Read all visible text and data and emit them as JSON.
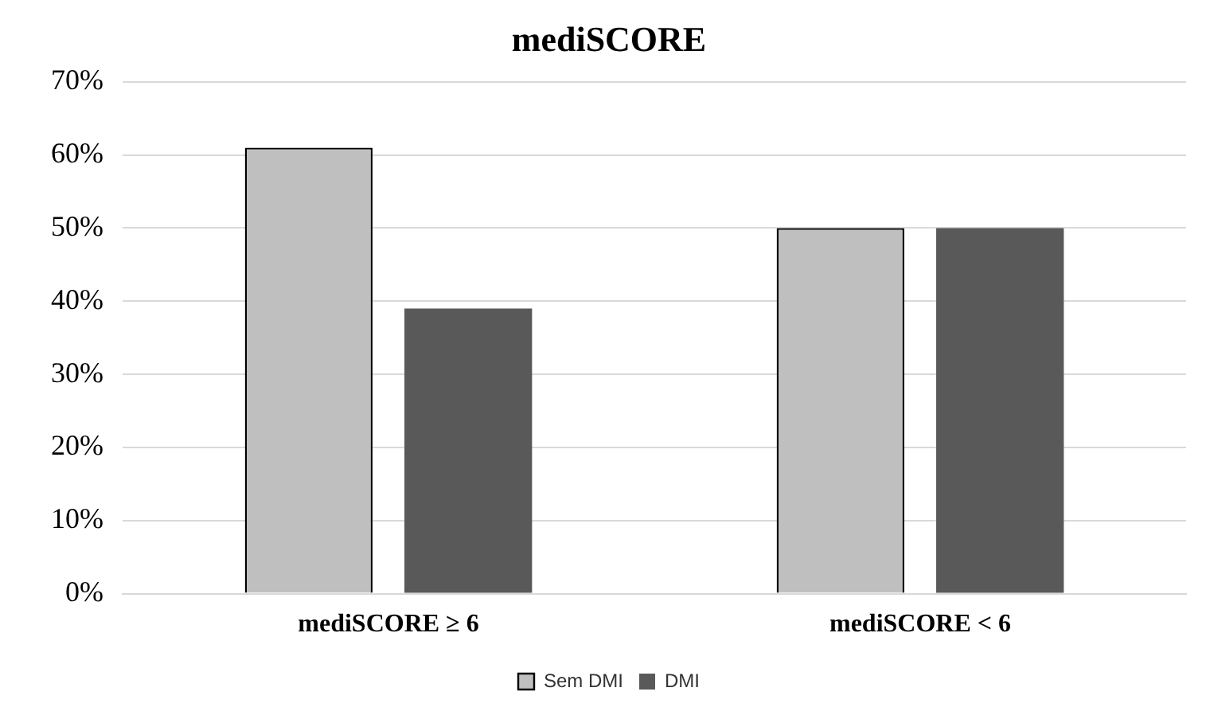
{
  "chart_data": {
    "type": "bar",
    "title": "mediSCORE",
    "categories": [
      "mediSCORE ≥ 6",
      "mediSCORE < 6"
    ],
    "series": [
      {
        "name": "Sem DMI",
        "color": "#bfbfbf",
        "values": [
          61,
          50
        ]
      },
      {
        "name": "DMI",
        "color": "#595959",
        "values": [
          39,
          50
        ]
      }
    ],
    "ylim": [
      0,
      70
    ],
    "yticks": [
      {
        "value": 0,
        "label": "0%"
      },
      {
        "value": 10,
        "label": "10%"
      },
      {
        "value": 20,
        "label": "20%"
      },
      {
        "value": 30,
        "label": "30%"
      },
      {
        "value": 40,
        "label": "40%"
      },
      {
        "value": 50,
        "label": "50%"
      },
      {
        "value": 60,
        "label": "60%"
      },
      {
        "value": 70,
        "label": "70%"
      }
    ],
    "grid": "y",
    "legend": "bottom"
  }
}
